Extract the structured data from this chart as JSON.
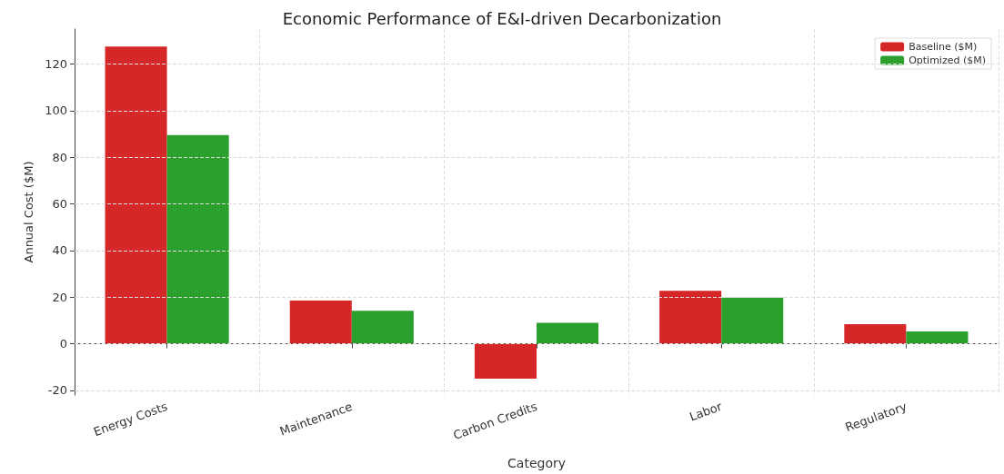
{
  "chart_data": {
    "type": "bar",
    "title": "Economic Performance of E&I-driven Decarbonization",
    "xlabel": "Category",
    "ylabel": "Annual Cost ($M)",
    "categories": [
      "Energy Costs",
      "Maintenance",
      "Carbon Credits",
      "Labor",
      "Regulatory"
    ],
    "series": [
      {
        "name": "Baseline ($M)",
        "color": "#d62728",
        "values": [
          127.5,
          18.5,
          -15,
          22.7,
          8.4
        ]
      },
      {
        "name": "Optimized ($M)",
        "color": "#2ca02c",
        "values": [
          89.5,
          14.1,
          9,
          19.8,
          5.3
        ]
      }
    ],
    "ylim": [
      -22,
      135
    ],
    "yticks": [
      -20,
      0,
      20,
      40,
      60,
      80,
      100,
      120
    ],
    "grid": true,
    "legend": "top right"
  }
}
